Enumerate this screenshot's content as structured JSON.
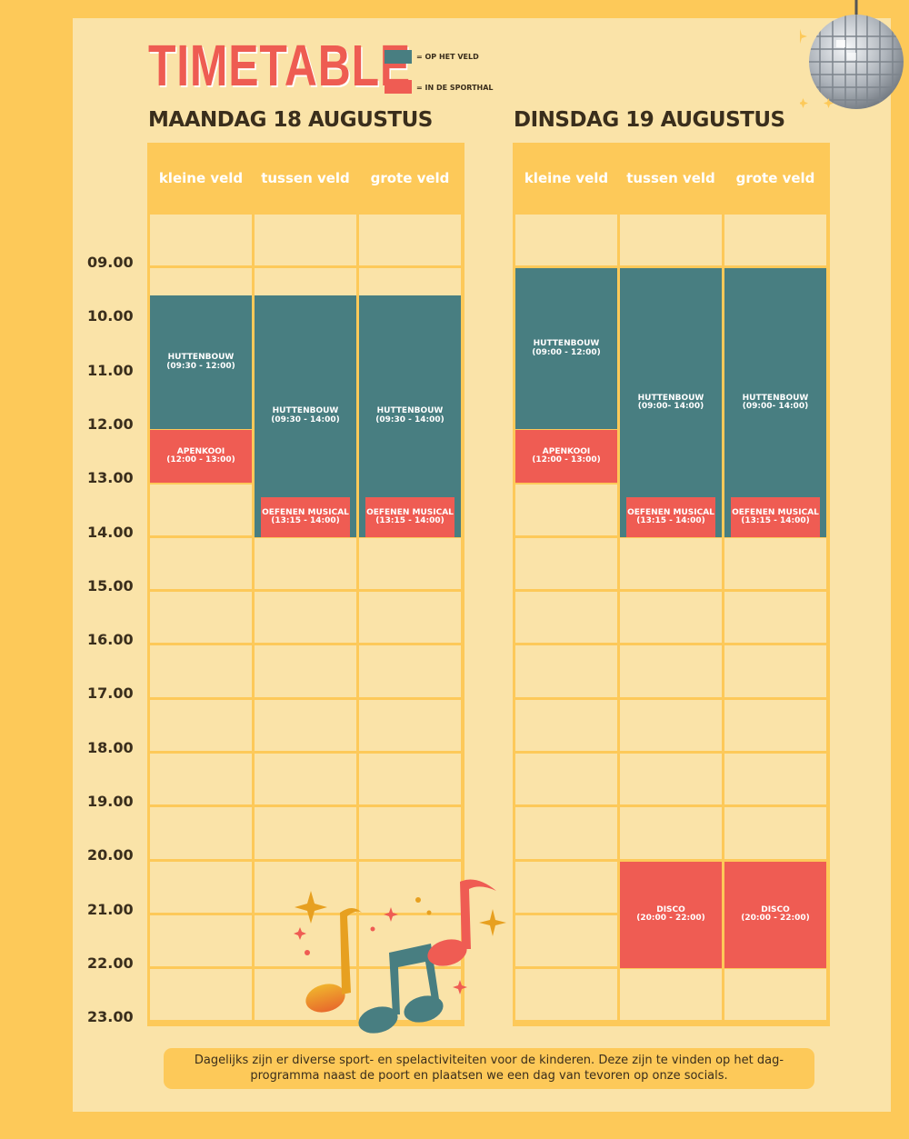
{
  "title": "TIMETABLE",
  "legend": [
    {
      "label": "= OP HET VELD",
      "color": "#487e81"
    },
    {
      "label": "= IN DE SPORTHAL",
      "color": "#ef5c53"
    }
  ],
  "hours": [
    "09.00",
    "10.00",
    "11.00",
    "12.00",
    "13.00",
    "14.00",
    "15.00",
    "16.00",
    "17.00",
    "18.00",
    "19.00",
    "20.00",
    "21.00",
    "22.00",
    "23.00"
  ],
  "days": [
    {
      "title": "MAANDAG 18 AUGUSTUS",
      "columns": [
        "kleine veld",
        "tussen veld",
        "grote veld"
      ],
      "events": [
        {
          "col": 0,
          "name": "HUTTENBOUW",
          "time": "(09:30 - 12:00)",
          "start": 9.5,
          "end": 12,
          "kind": "teal"
        },
        {
          "col": 0,
          "name": "APENKOOI",
          "time": "(12:00 - 13:00)",
          "start": 12,
          "end": 13,
          "kind": "red"
        },
        {
          "col": 1,
          "name": "HUTTENBOUW",
          "time": "(09:30 - 14:00)",
          "start": 9.5,
          "end": 14,
          "kind": "teal"
        },
        {
          "col": 1,
          "name": "OEFENEN MUSICAL",
          "time": "(13:15 - 14:00)",
          "start": 13.25,
          "end": 14,
          "kind": "red"
        },
        {
          "col": 2,
          "name": "HUTTENBOUW",
          "time": "(09:30 - 14:00)",
          "start": 9.5,
          "end": 14,
          "kind": "teal"
        },
        {
          "col": 2,
          "name": "OEFENEN MUSICAL",
          "time": "(13:15 - 14:00)",
          "start": 13.25,
          "end": 14,
          "kind": "red"
        }
      ]
    },
    {
      "title": "DINSDAG 19 AUGUSTUS",
      "columns": [
        "kleine veld",
        "tussen veld",
        "grote veld"
      ],
      "events": [
        {
          "col": 0,
          "name": "HUTTENBOUW",
          "time": "(09:00 - 12:00)",
          "start": 9,
          "end": 12,
          "kind": "teal"
        },
        {
          "col": 0,
          "name": "APENKOOI",
          "time": "(12:00 - 13:00)",
          "start": 12,
          "end": 13,
          "kind": "red"
        },
        {
          "col": 1,
          "name": "HUTTENBOUW",
          "time": "(09:00- 14:00)",
          "start": 9,
          "end": 14,
          "kind": "teal"
        },
        {
          "col": 1,
          "name": "OEFENEN MUSICAL",
          "time": "(13:15 - 14:00)",
          "start": 13.25,
          "end": 14,
          "kind": "red"
        },
        {
          "col": 2,
          "name": "HUTTENBOUW",
          "time": "(09:00- 14:00)",
          "start": 9,
          "end": 14,
          "kind": "teal"
        },
        {
          "col": 2,
          "name": "OEFENEN MUSICAL",
          "time": "(13:15 - 14:00)",
          "start": 13.25,
          "end": 14,
          "kind": "red"
        },
        {
          "col": 1,
          "name": "DISCO",
          "time": "(20:00 - 22:00)",
          "start": 20,
          "end": 22,
          "kind": "red"
        },
        {
          "col": 2,
          "name": "DISCO",
          "time": "(20:00 - 22:00)",
          "start": 20,
          "end": 22,
          "kind": "red"
        }
      ]
    }
  ],
  "note": "Dagelijks zijn er diverse sport- en spelactiviteiten voor de kinderen. Deze zijn te vinden op het dag-programma naast de poort en plaatsen we een dag van tevoren op onze socials.",
  "icons": [
    "disco-ball-icon",
    "music-notes-icon"
  ]
}
